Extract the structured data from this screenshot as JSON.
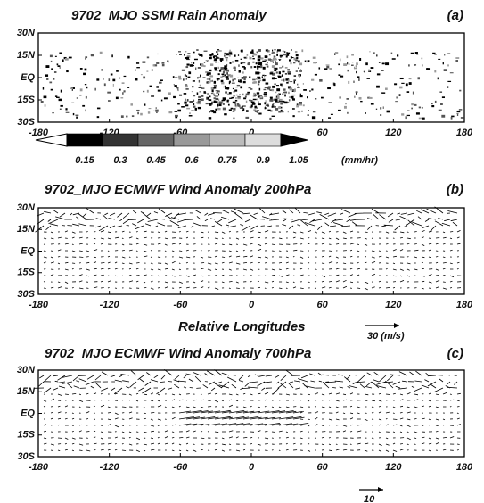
{
  "panels": [
    {
      "title": "9702_MJO SSMI Rain Anomaly",
      "label": "(a)"
    },
    {
      "title": "9702_MJO ECMWF Wind Anomaly 200hPa",
      "label": "(b)"
    },
    {
      "title": "9702_MJO ECMWF Wind Anomaly 700hPa",
      "label": "(c)"
    }
  ],
  "latitudes": [
    "30N",
    "15N",
    "EQ",
    "15S",
    "30S"
  ],
  "longitudes": [
    "-180",
    "-120",
    "-60",
    "0",
    "60",
    "120",
    "180"
  ],
  "colorbar": {
    "ticks": [
      "0.15",
      "0.3",
      "0.45",
      "0.6",
      "0.75",
      "0.9",
      "1.05"
    ],
    "unit": "(mm/hr)"
  },
  "x_label": "Relative Longitudes",
  "reference_vectors": [
    "30 (m/s)",
    "10"
  ]
}
